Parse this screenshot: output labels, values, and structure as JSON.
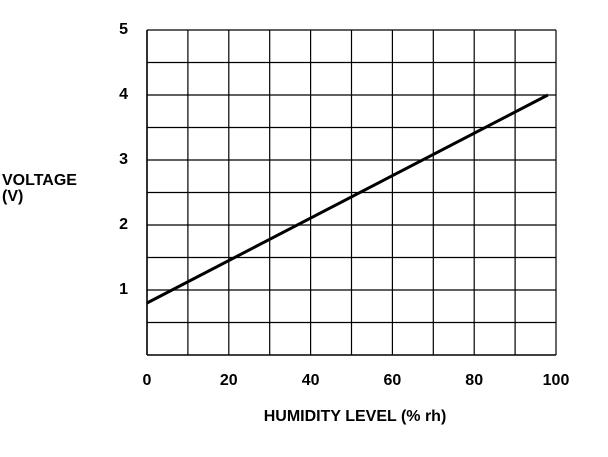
{
  "chart_data": {
    "type": "line",
    "x_label": "HUMIDITY LEVEL (% rh)",
    "y_label": [
      "VOLTAGE",
      "(V)"
    ],
    "series": [
      {
        "x": [
          0,
          98
        ],
        "values": [
          0.8,
          4.0
        ],
        "color": "#000000"
      }
    ],
    "xlim": [
      0,
      100
    ],
    "ylim": [
      0,
      5
    ],
    "xticks": [
      0,
      20,
      40,
      60,
      80,
      100
    ],
    "yticks": [
      1,
      2,
      3,
      4,
      5
    ],
    "minor_xticks": [
      10,
      30,
      50,
      70,
      90
    ],
    "minor_yticks": [
      0.5,
      1.5,
      2.5,
      3.5,
      4.5
    ],
    "grid": true
  }
}
